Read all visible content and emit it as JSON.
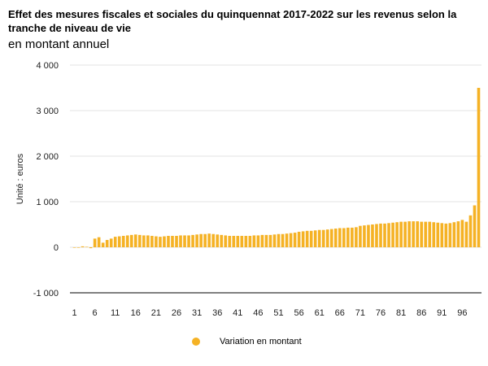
{
  "chart_data": {
    "type": "bar",
    "title": "Effet des mesures fiscales et sociales du quinquennat 2017-2022 sur les revenus selon la tranche de niveau de vie",
    "subtitle": "en montant annuel",
    "ylabel": "Unité : euros",
    "xlabel": "",
    "ylim": [
      -1000,
      4000
    ],
    "yticks": [
      -1000,
      0,
      1000,
      2000,
      3000,
      4000
    ],
    "ytick_labels": [
      "-1 000",
      "0",
      "1 000",
      "2 000",
      "3 000",
      "4 000"
    ],
    "xtick_values": [
      1,
      6,
      11,
      16,
      21,
      26,
      31,
      36,
      41,
      46,
      51,
      56,
      61,
      66,
      71,
      76,
      81,
      86,
      91,
      96
    ],
    "xtick_labels": [
      "1",
      "6",
      "11",
      "16",
      "21",
      "26",
      "31",
      "36",
      "41",
      "46",
      "51",
      "56",
      "61",
      "66",
      "71",
      "76",
      "81",
      "86",
      "91",
      "96"
    ],
    "grid": true,
    "legend_position": "bottom",
    "color": "#F5B225",
    "series": [
      {
        "name": "Variation en montant",
        "x": [
          1,
          2,
          3,
          4,
          5,
          6,
          7,
          8,
          9,
          10,
          11,
          12,
          13,
          14,
          15,
          16,
          17,
          18,
          19,
          20,
          21,
          22,
          23,
          24,
          25,
          26,
          27,
          28,
          29,
          30,
          31,
          32,
          33,
          34,
          35,
          36,
          37,
          38,
          39,
          40,
          41,
          42,
          43,
          44,
          45,
          46,
          47,
          48,
          49,
          50,
          51,
          52,
          53,
          54,
          55,
          56,
          57,
          58,
          59,
          60,
          61,
          62,
          63,
          64,
          65,
          66,
          67,
          68,
          69,
          70,
          71,
          72,
          73,
          74,
          75,
          76,
          77,
          78,
          79,
          80,
          81,
          82,
          83,
          84,
          85,
          86,
          87,
          88,
          89,
          90,
          91,
          92,
          93,
          94,
          95,
          96,
          97,
          98,
          99,
          100
        ],
        "values": [
          0,
          -10,
          20,
          10,
          -20,
          190,
          220,
          100,
          160,
          190,
          230,
          240,
          250,
          260,
          270,
          280,
          270,
          260,
          260,
          250,
          240,
          230,
          240,
          250,
          250,
          250,
          260,
          260,
          260,
          270,
          280,
          290,
          290,
          300,
          290,
          280,
          270,
          260,
          250,
          250,
          250,
          250,
          250,
          250,
          260,
          260,
          270,
          270,
          270,
          280,
          290,
          290,
          300,
          310,
          320,
          340,
          350,
          360,
          360,
          370,
          380,
          380,
          390,
          400,
          410,
          420,
          420,
          430,
          430,
          440,
          470,
          480,
          490,
          500,
          510,
          520,
          520,
          530,
          540,
          550,
          560,
          560,
          570,
          570,
          570,
          560,
          560,
          560,
          550,
          540,
          530,
          520,
          530,
          550,
          570,
          600,
          560,
          700,
          920,
          3500
        ]
      }
    ]
  }
}
